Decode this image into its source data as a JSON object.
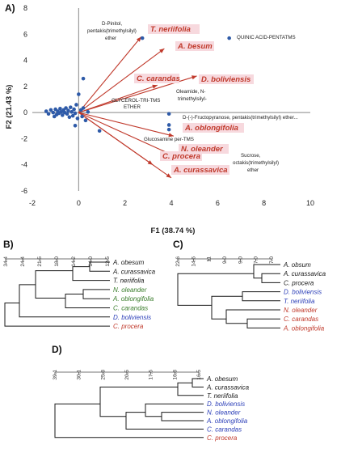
{
  "panels": {
    "a": "A)",
    "b": "B)",
    "c": "C)",
    "d": "D)"
  },
  "colors": {
    "arrow": "#c0392b",
    "point": "#2e5aa8",
    "black": "#1a1a1a",
    "green": "#3a7d2c",
    "blue": "#2c3fb8",
    "red": "#c0392b",
    "highlight": "#f7d9de"
  },
  "chart_data": [
    {
      "type": "scatter",
      "panel": "A",
      "xlabel": "F1 (38.74 %)",
      "ylabel": "F2 (21.43 %)",
      "xlim": [
        -2,
        10
      ],
      "ylim": [
        -6,
        8
      ],
      "xticks": [
        -2,
        0,
        2,
        4,
        6,
        8,
        10
      ],
      "yticks": [
        -6,
        -4,
        -2,
        0,
        2,
        4,
        6,
        8
      ],
      "x_tick_labels": [
        "-2",
        "0",
        "2",
        "4",
        "6",
        "8",
        "10"
      ],
      "y_tick_labels": [
        "-6",
        "-4",
        "-2",
        "0",
        "2",
        "4",
        "6",
        "8"
      ],
      "biplot_vectors": [
        {
          "name": "T. neriifolia",
          "x": 2.7,
          "y": 5.8
        },
        {
          "name": "A. besum",
          "x": 3.7,
          "y": 4.9
        },
        {
          "name": "C. carandas",
          "x": 3.4,
          "y": 2.1
        },
        {
          "name": "D. boliviensis",
          "x": 5.1,
          "y": 2.8
        },
        {
          "name": "A. oblongifolia",
          "x": 4.1,
          "y": -1.8
        },
        {
          "name": "N. oleander",
          "x": 4.1,
          "y": -3.3
        },
        {
          "name": "C. procera",
          "x": 3.2,
          "y": -4.0
        },
        {
          "name": "A. curassavica",
          "x": 4.0,
          "y": -5.0
        }
      ],
      "points": [
        {
          "x": -1.4,
          "y": 0.1
        },
        {
          "x": -1.3,
          "y": -0.1
        },
        {
          "x": -1.2,
          "y": 0.2
        },
        {
          "x": -1.1,
          "y": 0.0
        },
        {
          "x": -1.0,
          "y": 0.25
        },
        {
          "x": -0.95,
          "y": -0.15
        },
        {
          "x": -0.9,
          "y": 0.1
        },
        {
          "x": -0.85,
          "y": -0.05
        },
        {
          "x": -0.8,
          "y": 0.3
        },
        {
          "x": -0.75,
          "y": 0.05
        },
        {
          "x": -0.7,
          "y": -0.2
        },
        {
          "x": -0.65,
          "y": 0.2
        },
        {
          "x": -0.6,
          "y": 0.0
        },
        {
          "x": -0.55,
          "y": 0.35
        },
        {
          "x": -0.5,
          "y": -0.1
        },
        {
          "x": -0.45,
          "y": 0.15
        },
        {
          "x": -0.4,
          "y": -0.35
        },
        {
          "x": -0.35,
          "y": 0.4
        },
        {
          "x": -0.3,
          "y": 0.05
        },
        {
          "x": -0.25,
          "y": -0.25
        },
        {
          "x": -0.2,
          "y": 0.25
        },
        {
          "x": -0.15,
          "y": -0.05
        },
        {
          "x": -0.1,
          "y": 0.6
        },
        {
          "x": -0.05,
          "y": -0.45
        },
        {
          "x": 0.1,
          "y": 0.2
        },
        {
          "x": 0.15,
          "y": -0.3
        },
        {
          "x": 0.2,
          "y": 0.35
        },
        {
          "x": 0.3,
          "y": -0.6
        },
        {
          "x": 0.4,
          "y": 0.05
        },
        {
          "x": -0.15,
          "y": -1.0
        },
        {
          "x": 0.0,
          "y": 1.4
        },
        {
          "x": 0.2,
          "y": 2.6
        },
        {
          "x": -1.05,
          "y": -0.3
        },
        {
          "x": 2.75,
          "y": 5.7
        },
        {
          "x": 6.5,
          "y": 5.7
        },
        {
          "x": 3.9,
          "y": -0.1
        },
        {
          "x": 3.9,
          "y": -0.95
        },
        {
          "x": 3.9,
          "y": -1.3
        },
        {
          "x": 6.3,
          "y": -4.3
        },
        {
          "x": 0.9,
          "y": -1.4
        }
      ],
      "annotations": [
        "D-Pinitol,",
        "pentakis(trimethylsilyl)",
        "ether",
        "QUINIC ACID-PENTATMS",
        "GLYCEROL-TRI-TMS",
        "ETHER",
        "Oleamide, N-",
        "trimethylsilyl-",
        "D-(-)-Fructopyranose, pentakis(trimethylsilyl) ether...",
        "Glucosamine per-TMS",
        "Sucrose,",
        "octakis(trimethylsilyl)",
        "ether"
      ]
    },
    {
      "type": "dendrogram",
      "panel": "B",
      "scale_labels": [
        "34.4",
        "24.4",
        "21.5",
        "18.0",
        "14.2",
        "14.0",
        "12.5"
      ],
      "leaves": [
        {
          "name": "A. obesum",
          "color": "black"
        },
        {
          "name": "A. curassavica",
          "color": "black"
        },
        {
          "name": "T. neriifolia",
          "color": "black"
        },
        {
          "name": "N. oleander",
          "color": "green"
        },
        {
          "name": "A. oblongifolia",
          "color": "green"
        },
        {
          "name": "C. carandas",
          "color": "green"
        },
        {
          "name": "D. boliviensis",
          "color": "blue"
        },
        {
          "name": "C. procera",
          "color": "red"
        }
      ]
    },
    {
      "type": "dendrogram",
      "panel": "C",
      "scale_labels": [
        "22.6",
        "14.6",
        "11",
        "9.0",
        "9.0",
        "7.0",
        "7.0"
      ],
      "leaves": [
        {
          "name": "A. obsum",
          "color": "black"
        },
        {
          "name": "A. curassavica",
          "color": "black"
        },
        {
          "name": "C. procera",
          "color": "black"
        },
        {
          "name": "D. boliviensis",
          "color": "blue"
        },
        {
          "name": "T. neriifolia",
          "color": "blue"
        },
        {
          "name": "N. oleander",
          "color": "red"
        },
        {
          "name": "C. carandas",
          "color": "red"
        },
        {
          "name": "A. oblongifolia",
          "color": "red"
        }
      ]
    },
    {
      "type": "dendrogram",
      "panel": "D",
      "scale_labels": [
        "39.1",
        "30.1",
        "25.8",
        "20.5",
        "17.5",
        "16.8",
        "16.5"
      ],
      "leaves": [
        {
          "name": "A. obesum",
          "color": "black"
        },
        {
          "name": "A. curassavica",
          "color": "black"
        },
        {
          "name": "T. neriifolia",
          "color": "black"
        },
        {
          "name": "D. boliviensis",
          "color": "blue"
        },
        {
          "name": "N. oleander",
          "color": "blue"
        },
        {
          "name": "A. oblongifolia",
          "color": "blue"
        },
        {
          "name": "C. carandas",
          "color": "blue"
        },
        {
          "name": "C. procera",
          "color": "red"
        }
      ]
    }
  ]
}
